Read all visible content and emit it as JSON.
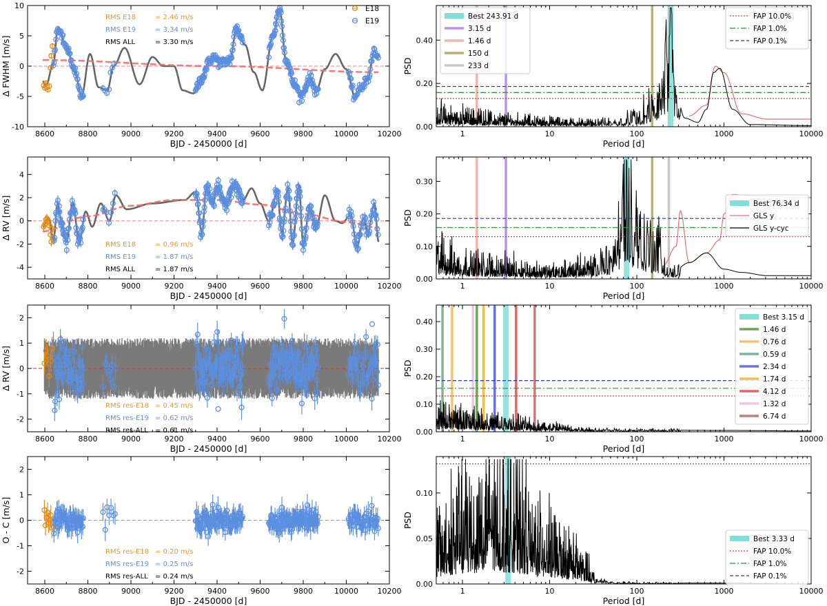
{
  "chart_data": [
    {
      "panel": "fwhm-timeseries",
      "type": "scatter",
      "xlabel": "BJD - 2450000 [d]",
      "ylabel": "Δ FWHM [m/s]",
      "xlim": [
        8520,
        10200
      ],
      "ylim": [
        -10,
        10
      ],
      "xticks": [
        8600,
        8800,
        9000,
        9200,
        9400,
        9600,
        9800,
        10000,
        10200
      ],
      "yticks": [
        -10,
        -5,
        0,
        5,
        10
      ],
      "legend": [
        {
          "label": "E18",
          "color": "#e58a12"
        },
        {
          "label": "E19",
          "color": "#5b8fe0"
        }
      ],
      "stats": [
        {
          "label": "RMS E18",
          "value": "= 2.46 m/s",
          "color": "#f0961e"
        },
        {
          "label": "RMS E19",
          "value": "= 3.34 m/s",
          "color": "#5b8fe0"
        },
        {
          "label": "RMS ALL",
          "value": "= 3.30 m/s",
          "color": "#000000"
        }
      ],
      "gp_knots": {
        "x": [
          8590,
          8605,
          8640,
          8660,
          8700,
          8740,
          8770,
          8810,
          8850,
          8890,
          8920,
          8970,
          9040,
          9100,
          9150,
          9200,
          9240,
          9290,
          9330,
          9360,
          9380,
          9420,
          9460,
          9490,
          9530,
          9570,
          9610,
          9660,
          9690,
          9720,
          9760,
          9790,
          9830,
          9860,
          9900,
          9950,
          10000,
          10040,
          10060,
          10100,
          10130,
          10150
        ],
        "y": [
          -2.5,
          -3.3,
          0.5,
          6.2,
          3.2,
          -1,
          -5,
          2,
          -3.5,
          -4,
          0,
          3,
          -3,
          1.5,
          0,
          0,
          -4,
          -4.5,
          -2,
          0.5,
          1.5,
          0.5,
          1,
          6.2,
          3.5,
          -1,
          -4,
          5,
          9.5,
          1,
          -3,
          -5,
          -2,
          -4,
          -0.5,
          2,
          -0.5,
          -5,
          -4,
          -2,
          2.5,
          1.2
        ]
      },
      "trend_knots": {
        "x": [
          8590,
          9400,
          10150
        ],
        "y": [
          1.0,
          0.0,
          -1.0
        ]
      },
      "e18_points": {
        "x": [
          8595,
          8600,
          8605,
          8610,
          8615,
          8620,
          8626,
          8630,
          8635
        ],
        "y": [
          -3.2,
          -3.6,
          -2.8,
          -3.5,
          -3.9,
          -3.3,
          -0.3,
          1.7,
          3.3
        ]
      },
      "e19_range": [
        8640,
        10150
      ]
    },
    {
      "panel": "fwhm-periodogram",
      "type": "line",
      "xscale": "log",
      "xlabel": "Period [d]",
      "ylabel": "PSD",
      "xlim": [
        0.5,
        10000
      ],
      "ylim": [
        0,
        0.56
      ],
      "xticks": [
        1,
        10,
        100,
        1000,
        10000
      ],
      "yticks": [
        0.0,
        0.2,
        0.4
      ],
      "fap_levels": [
        0.13,
        0.158,
        0.186
      ],
      "best": {
        "label": "Best 243.91 d",
        "period": 243.91
      },
      "markers": [
        {
          "label": "3.15 d",
          "period": 3.15,
          "color": "#c090f0"
        },
        {
          "label": "1.46 d",
          "period": 1.46,
          "color": "#f4b4a8"
        },
        {
          "label": "150 d",
          "period": 150,
          "color": "#b8b46c"
        },
        {
          "label": "233 d",
          "period": 233,
          "color": "#c8c8c8"
        }
      ],
      "fap_legend": [
        {
          "label": "FAP 10.0%",
          "color": "#dd3333",
          "style": "dotted"
        },
        {
          "label": "FAP 1.0%",
          "color": "#22992a",
          "style": "dashdot"
        },
        {
          "label": "FAP 0.1%",
          "color": "#2233cc",
          "style": "dashed"
        }
      ],
      "curve_knots": {
        "logP": [
          -0.3,
          0,
          0.5,
          1,
          1.5,
          1.8,
          2,
          2.2,
          2.3,
          2.35,
          2.39,
          2.42,
          2.45,
          2.55,
          2.7,
          2.8,
          2.88,
          2.95,
          3.1,
          3.3,
          4.0
        ],
        "psd": [
          0.06,
          0.05,
          0.035,
          0.025,
          0.02,
          0.025,
          0.05,
          0.1,
          0.2,
          0.45,
          0.48,
          0.3,
          0.15,
          0.04,
          0.02,
          0.08,
          0.25,
          0.27,
          0.08,
          0.01,
          0.005
        ]
      },
      "window_knots": {
        "logP": [
          2.6,
          2.8,
          2.9,
          3.0,
          3.2,
          3.5,
          4.0
        ],
        "psd": [
          0.05,
          0.1,
          0.28,
          0.25,
          0.06,
          0.035,
          0.035
        ]
      }
    },
    {
      "panel": "rv-timeseries",
      "type": "scatter",
      "xlabel": "BJD - 2450000 [d]",
      "ylabel": "Δ RV [m/s]",
      "xlim": [
        8520,
        10200
      ],
      "ylim": [
        -5,
        5.5
      ],
      "xticks": [
        8600,
        8800,
        9000,
        9200,
        9400,
        9600,
        9800,
        10000,
        10200
      ],
      "yticks": [
        -4,
        -2,
        0,
        2,
        4
      ],
      "stats": [
        {
          "label": "RMS E18",
          "value": "= 0.96 m/s",
          "color": "#f0961e"
        },
        {
          "label": "RMS E19",
          "value": "= 1.87 m/s",
          "color": "#5b8fe0"
        },
        {
          "label": "RMS ALL",
          "value": "= 1.87 m/s",
          "color": "#000000"
        }
      ],
      "gp_knots": {
        "x": [
          8590,
          8620,
          8640,
          8660,
          8680,
          8700,
          8730,
          8760,
          8790,
          8820,
          8860,
          8900,
          8930,
          8980,
          9100,
          9250,
          9300,
          9330,
          9350,
          9380,
          9400,
          9440,
          9480,
          9520,
          9560,
          9600,
          9640,
          9680,
          9700,
          9730,
          9750,
          9780,
          9800,
          9830,
          9860,
          9900,
          9950,
          9980,
          10020,
          10050,
          10080,
          10100,
          10130,
          10150
        ],
        "y": [
          -0.5,
          0.2,
          -1.6,
          1.5,
          -0.5,
          -1.8,
          1.5,
          -1.8,
          0.8,
          -0.5,
          1.5,
          0,
          2.2,
          1,
          1.5,
          1.8,
          2.5,
          -1,
          2.8,
          1.5,
          3.0,
          1.3,
          3.1,
          1.8,
          2.8,
          1.5,
          0,
          2.5,
          -1,
          2.8,
          -2,
          3.0,
          -2,
          1,
          -0.5,
          2.2,
          0,
          -0.2,
          0.5,
          -2.2,
          0.2,
          -1,
          1.5,
          -1.8
        ]
      },
      "trend_knots": {
        "x": [
          8590,
          8800,
          9000,
          9200,
          9400,
          9600,
          9800,
          10000,
          10150
        ],
        "y": [
          -0.9,
          0.4,
          1.3,
          1.8,
          1.8,
          1.4,
          0.6,
          -0.1,
          -0.6
        ]
      },
      "e18_points": {
        "x": [
          8595,
          8600,
          8605,
          8610,
          8615,
          8620,
          8626,
          8630,
          8635
        ],
        "y": [
          -0.5,
          -0.3,
          0.1,
          0.2,
          0.0,
          -0.4,
          -1.2,
          -1.8,
          -0.7
        ]
      },
      "e19_range": [
        8640,
        10150
      ]
    },
    {
      "panel": "rv-periodogram",
      "type": "line",
      "xscale": "log",
      "xlabel": "Period [d]",
      "ylabel": "PSD",
      "xlim": [
        0.5,
        10000
      ],
      "ylim": [
        0,
        0.375
      ],
      "xticks": [
        1,
        10,
        100,
        1000,
        10000
      ],
      "yticks": [
        0.0,
        0.1,
        0.2,
        0.3
      ],
      "fap_levels": [
        0.13,
        0.158,
        0.186
      ],
      "best": {
        "label": "Best 76.34 d",
        "period": 76.34
      },
      "markers": [
        {
          "period": 1.46,
          "color": "#f4b4a8"
        },
        {
          "period": 3.15,
          "color": "#c090f0"
        },
        {
          "period": 150,
          "color": "#b8b46c"
        },
        {
          "period": 233,
          "color": "#c8c8c8"
        }
      ],
      "legend": [
        {
          "label": "GLS y",
          "color": "#e57070"
        },
        {
          "label": "GLS y-cyc",
          "color": "#000000"
        }
      ],
      "curve_knots": {
        "logP": [
          -0.3,
          0,
          0.5,
          1,
          1.5,
          1.7,
          1.8,
          1.85,
          1.88,
          1.92,
          2.0,
          2.1,
          2.2,
          2.4,
          2.6,
          2.8,
          3.0,
          3.2,
          3.5,
          4.0
        ],
        "psd": [
          0.08,
          0.05,
          0.04,
          0.025,
          0.04,
          0.08,
          0.15,
          0.3,
          0.32,
          0.25,
          0.2,
          0.12,
          0.12,
          0.02,
          0.05,
          0.08,
          0.03,
          0.02,
          0.01,
          0.01
        ]
      },
      "window_knots": {
        "logP": [
          2.3,
          2.45,
          2.5,
          2.6,
          2.8,
          2.95,
          3.0,
          3.1,
          3.3,
          4.0
        ],
        "psd": [
          0.04,
          0.1,
          0.21,
          0.05,
          0.08,
          0.12,
          0.2,
          0.26,
          0.255,
          0.25
        ]
      }
    },
    {
      "panel": "rv-residual-timeseries",
      "type": "scatter",
      "xlabel": "BJD - 2450000 [d]",
      "ylabel": "Δ RV [m/s]",
      "xlim": [
        8520,
        10200
      ],
      "ylim": [
        -2.5,
        2.5
      ],
      "xticks": [
        8600,
        8800,
        9000,
        9200,
        9400,
        9600,
        9800,
        10000,
        10200
      ],
      "yticks": [
        -2,
        -1,
        0,
        1,
        2
      ],
      "stats": [
        {
          "label": "RMS res-E18",
          "value": "= 0.45 m/s",
          "color": "#f0961e"
        },
        {
          "label": "RMS res-E19",
          "value": "= 0.62 m/s",
          "color": "#5b8fe0"
        },
        {
          "label": "RMS res-ALL",
          "value": "= 0.61 m/s",
          "color": "#000000"
        }
      ],
      "band": [
        -1.2,
        1.2
      ],
      "e18_points": {
        "x": [
          8598,
          8605,
          8612,
          8620,
          8628,
          8634
        ],
        "y": [
          0.2,
          0.7,
          0.5,
          -0.3,
          0.3,
          0.8
        ]
      },
      "e19_range": [
        8640,
        10150
      ]
    },
    {
      "panel": "rv-residual-periodogram",
      "type": "line",
      "xscale": "log",
      "xlabel": "Period [d]",
      "ylabel": "PSD",
      "xlim": [
        0.5,
        10000
      ],
      "ylim": [
        0,
        0.46
      ],
      "xticks": [
        1,
        10,
        100,
        1000,
        10000
      ],
      "yticks": [
        0.0,
        0.1,
        0.2,
        0.3,
        0.4
      ],
      "fap_levels": [
        0.13,
        0.158,
        0.186
      ],
      "best": {
        "label": "Best 3.15 d",
        "period": 3.15
      },
      "markers": [
        {
          "label": "1.46 d",
          "period": 1.46,
          "color": "#6aa84f"
        },
        {
          "label": "0.76 d",
          "period": 0.76,
          "color": "#f6c26b"
        },
        {
          "label": "0.59 d",
          "period": 0.59,
          "color": "#7fb598"
        },
        {
          "label": "2.34 d",
          "period": 2.34,
          "color": "#6673e0"
        },
        {
          "label": "1.74 d",
          "period": 1.74,
          "color": "#f5c04a"
        },
        {
          "label": "4.12 d",
          "period": 4.12,
          "color": "#e06666"
        },
        {
          "label": "1.32 d",
          "period": 1.32,
          "color": "#f2c4ec"
        },
        {
          "label": "6.74 d",
          "period": 6.74,
          "color": "#c27c7c"
        }
      ],
      "curve_knots": {
        "logP": [
          -0.3,
          0,
          0.5,
          1,
          1.3,
          1.6,
          2,
          3,
          4
        ],
        "psd": [
          0.06,
          0.05,
          0.035,
          0.02,
          0.012,
          0.008,
          0.006,
          0.005,
          0.003
        ]
      }
    },
    {
      "panel": "o-minus-c-timeseries",
      "type": "scatter",
      "xlabel": "BJD - 2450000 [d]",
      "ylabel": "O - C [m/s]",
      "xlim": [
        8520,
        10200
      ],
      "ylim": [
        -2.5,
        2.5
      ],
      "xticks": [
        8600,
        8800,
        9000,
        9200,
        9400,
        9600,
        9800,
        10000,
        10200
      ],
      "yticks": [
        -2,
        -1,
        0,
        1,
        2
      ],
      "stats": [
        {
          "label": "RMS res-E18",
          "value": "= 0.20 m/s",
          "color": "#f0961e"
        },
        {
          "label": "RMS res-E19",
          "value": "= 0.25 m/s",
          "color": "#5b8fe0"
        },
        {
          "label": "RMS res-ALL",
          "value": "= 0.24 m/s",
          "color": "#000000"
        }
      ],
      "e18_points": {
        "x": [
          8598,
          8603,
          8608,
          8613,
          8618,
          8623,
          8628,
          8633
        ],
        "y": [
          0.4,
          -0.2,
          0.1,
          0.3,
          -0.1,
          0.0,
          0.2,
          -0.3
        ]
      },
      "e19_range": [
        8640,
        10150
      ]
    },
    {
      "panel": "o-minus-c-periodogram",
      "type": "line",
      "xscale": "log",
      "xlabel": "Period [d]",
      "ylabel": "PSD",
      "xlim": [
        0.5,
        10000
      ],
      "ylim": [
        0,
        0.14
      ],
      "xticks": [
        1,
        10,
        100,
        1000,
        10000
      ],
      "yticks": [
        0.0,
        0.05,
        0.1
      ],
      "fap_levels": [
        0.132
      ],
      "best": {
        "label": "Best 3.33 d",
        "period": 3.33
      },
      "fap_legend": [
        {
          "label": "FAP 10.0%",
          "color": "#dd3333",
          "style": "dotted"
        },
        {
          "label": "FAP 1.0%",
          "color": "#22992a",
          "style": "dashdot"
        },
        {
          "label": "FAP 0.1%",
          "color": "#2233cc",
          "style": "dashed"
        }
      ],
      "curve_knots": {
        "logP": [
          -0.3,
          0,
          0.3,
          0.6,
          0.9,
          1.2,
          1.4,
          1.55,
          1.7,
          2,
          3,
          4
        ],
        "psd": [
          0.05,
          0.07,
          0.09,
          0.08,
          0.05,
          0.035,
          0.02,
          0.005,
          0.002,
          0.001,
          0.001,
          0.0
        ]
      }
    }
  ]
}
